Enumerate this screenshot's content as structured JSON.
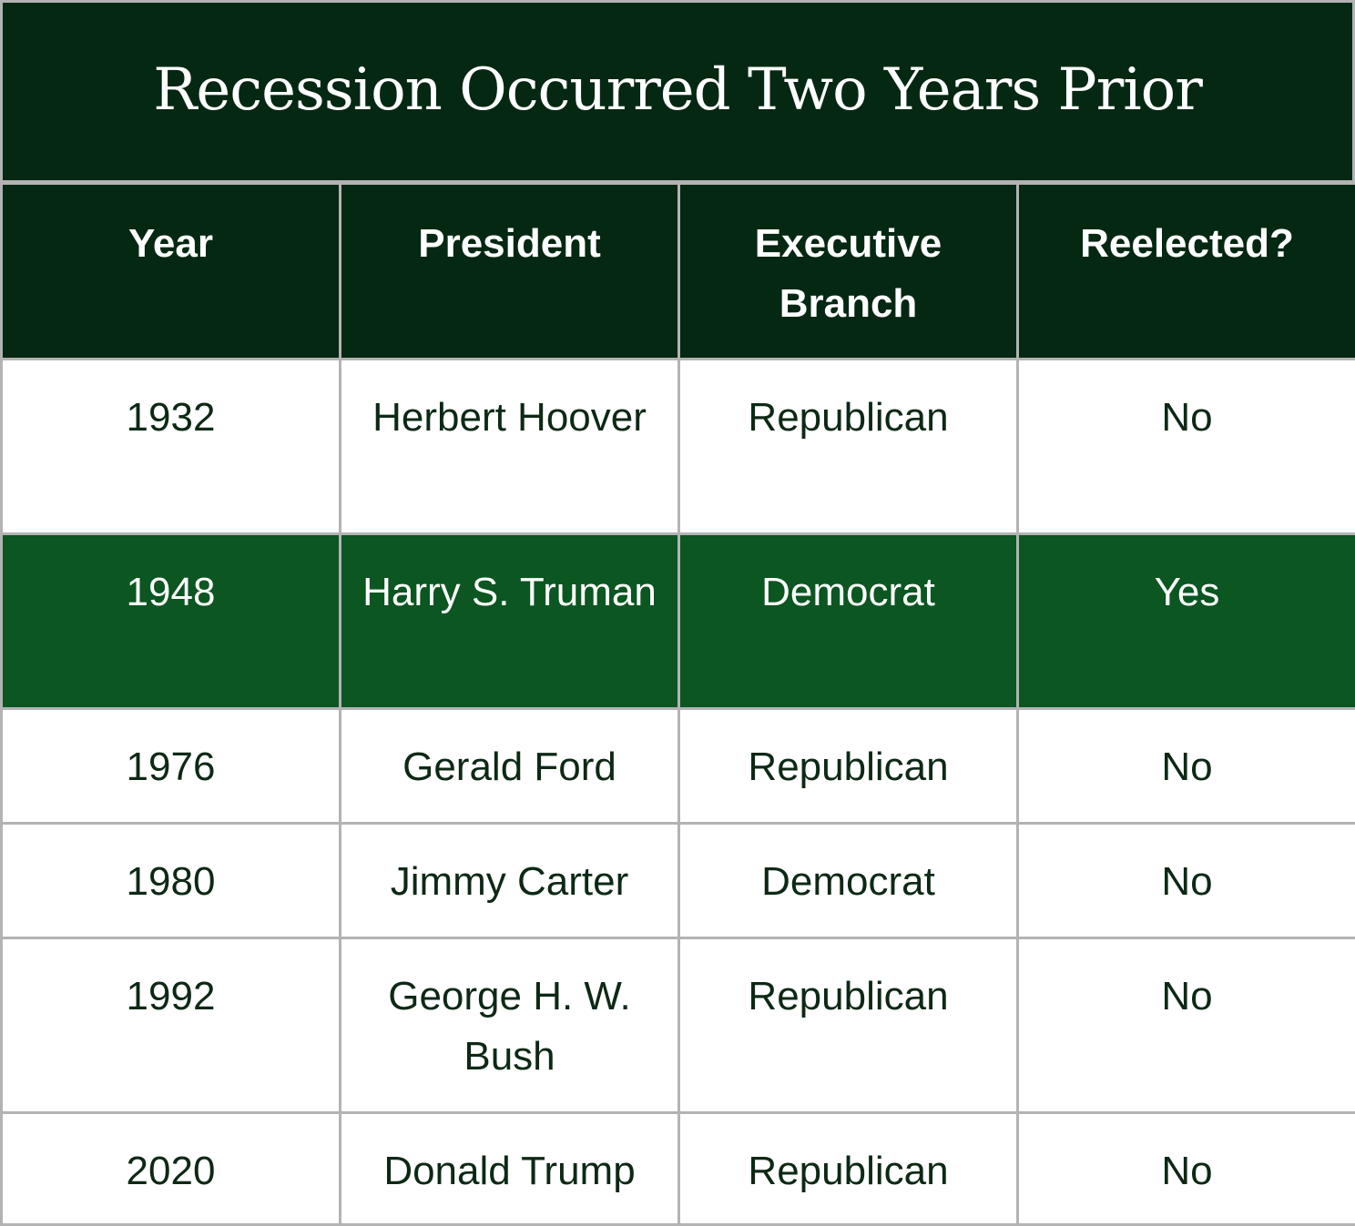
{
  "chart_data": {
    "type": "table",
    "title": "Recession Occurred Two Years Prior",
    "columns": [
      "Year",
      "President",
      "Executive Branch",
      "Reelected?"
    ],
    "rows": [
      {
        "year": "1932",
        "president": "Herbert Hoover",
        "executive_branch": "Republican",
        "reelected": "No",
        "highlight": false
      },
      {
        "year": "1948",
        "president": "Harry S. Truman",
        "executive_branch": "Democrat",
        "reelected": "Yes",
        "highlight": true
      },
      {
        "year": "1976",
        "president": "Gerald Ford",
        "executive_branch": "Republican",
        "reelected": "No",
        "highlight": false
      },
      {
        "year": "1980",
        "president": "Jimmy Carter",
        "executive_branch": "Democrat",
        "reelected": "No",
        "highlight": false
      },
      {
        "year": "1992",
        "president": "George H. W. Bush",
        "executive_branch": "Republican",
        "reelected": "No",
        "highlight": false
      },
      {
        "year": "2020",
        "president": "Donald Trump",
        "executive_branch": "Republican",
        "reelected": "No",
        "highlight": false
      }
    ]
  },
  "colors": {
    "header_background": "#052812",
    "highlight_row": "#0b5621",
    "grid_lines": "#b3b3b3",
    "body_text": "#0d2915",
    "header_text": "#ffffff"
  }
}
